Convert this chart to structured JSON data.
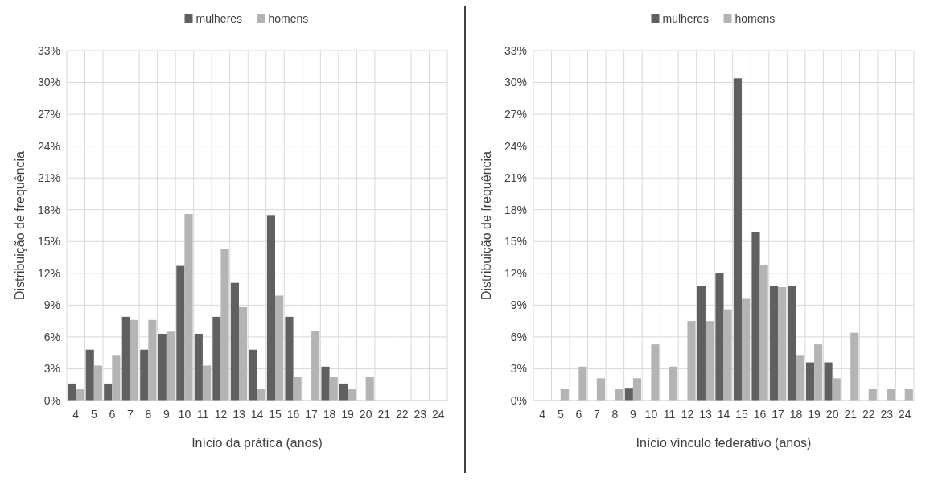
{
  "chart_data": [
    {
      "type": "bar",
      "xlabel": "Início da prática (anos)",
      "ylabel": "Distribuição de frequência",
      "categories": [
        "4",
        "5",
        "6",
        "7",
        "8",
        "9",
        "10",
        "11",
        "12",
        "13",
        "14",
        "15",
        "16",
        "17",
        "18",
        "19",
        "20",
        "21",
        "22",
        "23",
        "24"
      ],
      "series": [
        {
          "name": "mulheres",
          "color": "#606060",
          "values": [
            1.6,
            4.8,
            1.6,
            7.9,
            4.8,
            6.3,
            12.7,
            6.3,
            7.9,
            11.1,
            4.8,
            17.5,
            7.9,
            0,
            3.2,
            1.6,
            0,
            0,
            0,
            0,
            0
          ]
        },
        {
          "name": "homens",
          "color": "#b4b4b4",
          "values": [
            1.1,
            3.3,
            4.3,
            7.6,
            7.6,
            6.5,
            17.6,
            3.3,
            14.3,
            8.8,
            1.1,
            9.9,
            2.2,
            6.6,
            2.2,
            1.1,
            2.2,
            0,
            0,
            0,
            0
          ]
        }
      ],
      "ylim": [
        0,
        33
      ],
      "yticks": [
        {
          "value": 0,
          "label": "0%"
        },
        {
          "value": 3,
          "label": "3%"
        },
        {
          "value": 6,
          "label": "6%"
        },
        {
          "value": 9,
          "label": "9%"
        },
        {
          "value": 12,
          "label": "12%"
        },
        {
          "value": 15,
          "label": "15%"
        },
        {
          "value": 18,
          "label": "18%"
        },
        {
          "value": 21,
          "label": "21%"
        },
        {
          "value": 24,
          "label": "24%"
        },
        {
          "value": 27,
          "label": "27%"
        },
        {
          "value": 30,
          "label": "30%"
        },
        {
          "value": 33,
          "label": "33%"
        }
      ],
      "grid": true,
      "legend": "top"
    },
    {
      "type": "bar",
      "xlabel": "Início vínculo federativo (anos)",
      "ylabel": "Distribuição de frequência",
      "categories": [
        "4",
        "5",
        "6",
        "7",
        "8",
        "9",
        "10",
        "11",
        "12",
        "13",
        "14",
        "15",
        "16",
        "17",
        "18",
        "19",
        "20",
        "21",
        "22",
        "23",
        "24"
      ],
      "series": [
        {
          "name": "mulheres",
          "color": "#606060",
          "values": [
            0,
            0,
            0,
            0,
            0,
            1.2,
            0,
            0,
            0,
            10.8,
            12.0,
            30.4,
            15.9,
            10.8,
            10.8,
            3.6,
            3.6,
            0,
            0,
            0,
            0
          ]
        },
        {
          "name": "homens",
          "color": "#b4b4b4",
          "values": [
            0,
            1.1,
            3.2,
            2.1,
            1.1,
            2.1,
            5.3,
            3.2,
            7.5,
            7.5,
            8.6,
            9.6,
            12.8,
            10.7,
            4.3,
            5.3,
            2.1,
            6.4,
            1.1,
            1.1,
            1.1
          ]
        }
      ],
      "ylim": [
        0,
        33
      ],
      "yticks": [
        {
          "value": 0,
          "label": "0%"
        },
        {
          "value": 3,
          "label": "3%"
        },
        {
          "value": 6,
          "label": "6%"
        },
        {
          "value": 9,
          "label": "9%"
        },
        {
          "value": 12,
          "label": "12%"
        },
        {
          "value": 15,
          "label": "15%"
        },
        {
          "value": 18,
          "label": "18%"
        },
        {
          "value": 21,
          "label": "21%"
        },
        {
          "value": 24,
          "label": "24%"
        },
        {
          "value": 27,
          "label": "27%"
        },
        {
          "value": 30,
          "label": "30%"
        },
        {
          "value": 33,
          "label": "33%"
        }
      ],
      "grid": true,
      "legend": "top"
    }
  ]
}
